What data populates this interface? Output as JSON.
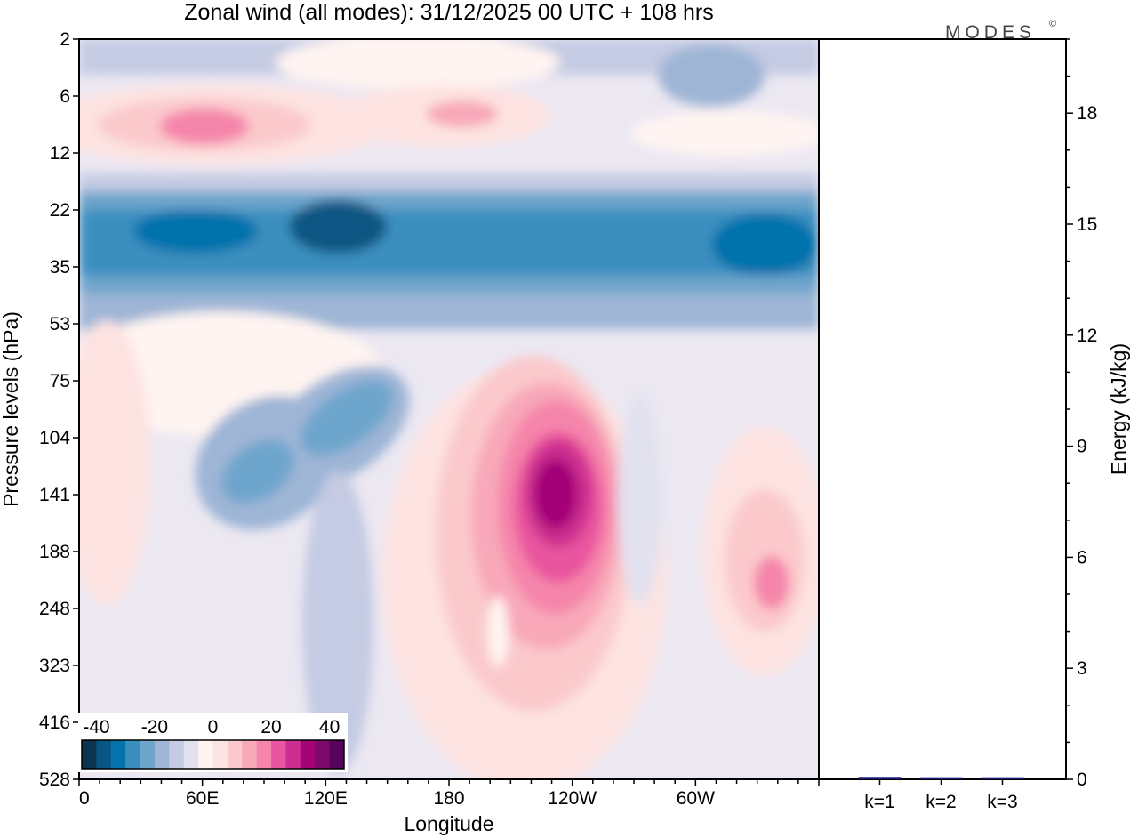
{
  "chart_data": [
    {
      "type": "heatmap",
      "title": "Zonal wind (all modes):  31/12/2025  00 UTC  + 108 hrs",
      "xlabel": "Longitude",
      "ylabel": "Pressure levels (hPa)",
      "x_ticks": [
        "0",
        "60E",
        "120E",
        "180",
        "120W",
        "60W"
      ],
      "x_range_deg": [
        0,
        360
      ],
      "y_ticks": [
        "2",
        "6",
        "12",
        "22",
        "35",
        "53",
        "75",
        "104",
        "141",
        "188",
        "248",
        "323",
        "416",
        "528"
      ],
      "colorbar": {
        "ticks": [
          "-40",
          "-20",
          "0",
          "20",
          "40"
        ],
        "range": [
          -45,
          45
        ],
        "step": 5,
        "colors": [
          "#0c3350",
          "#075683",
          "#0672ac",
          "#3b8fbf",
          "#6ea5cc",
          "#9eb5d6",
          "#c4cbe3",
          "#e2e2ef",
          "#fff4f1",
          "#fde3e1",
          "#fbc9cc",
          "#f8a8b9",
          "#f585aa",
          "#e9559e",
          "#cc2e8f",
          "#a40378",
          "#7c0869",
          "#54045c"
        ]
      },
      "features": [
        {
          "name": "stratospheric easterly band",
          "lon_range": [
            0,
            360
          ],
          "levels": "22-35",
          "value": -30
        },
        {
          "name": "upper westerly cores",
          "lon_range": [
            20,
            240
          ],
          "levels": "6-12",
          "value": 15
        },
        {
          "name": "westerly jet core",
          "lon_center": 235,
          "level": 141,
          "value": 40
        },
        {
          "name": "secondary westerly maximum",
          "lon_center": 340,
          "level": 188,
          "value": 20
        },
        {
          "name": "easterly tongue",
          "lon_range": [
            60,
            160
          ],
          "levels": "75-188",
          "value": -15
        }
      ]
    },
    {
      "type": "bar",
      "categories": [
        "k=1",
        "k=2",
        "k=3"
      ],
      "values": [
        0.03,
        0.02,
        0.02
      ],
      "ylabel": "Energy (kJ/kg)",
      "y_ticks": [
        "0",
        "3",
        "6",
        "9",
        "12",
        "15",
        "18"
      ],
      "ylim": [
        0,
        20
      ],
      "bar_color": "#1a1a7a"
    }
  ],
  "logo": {
    "text": "MODES",
    "mark": "©"
  }
}
